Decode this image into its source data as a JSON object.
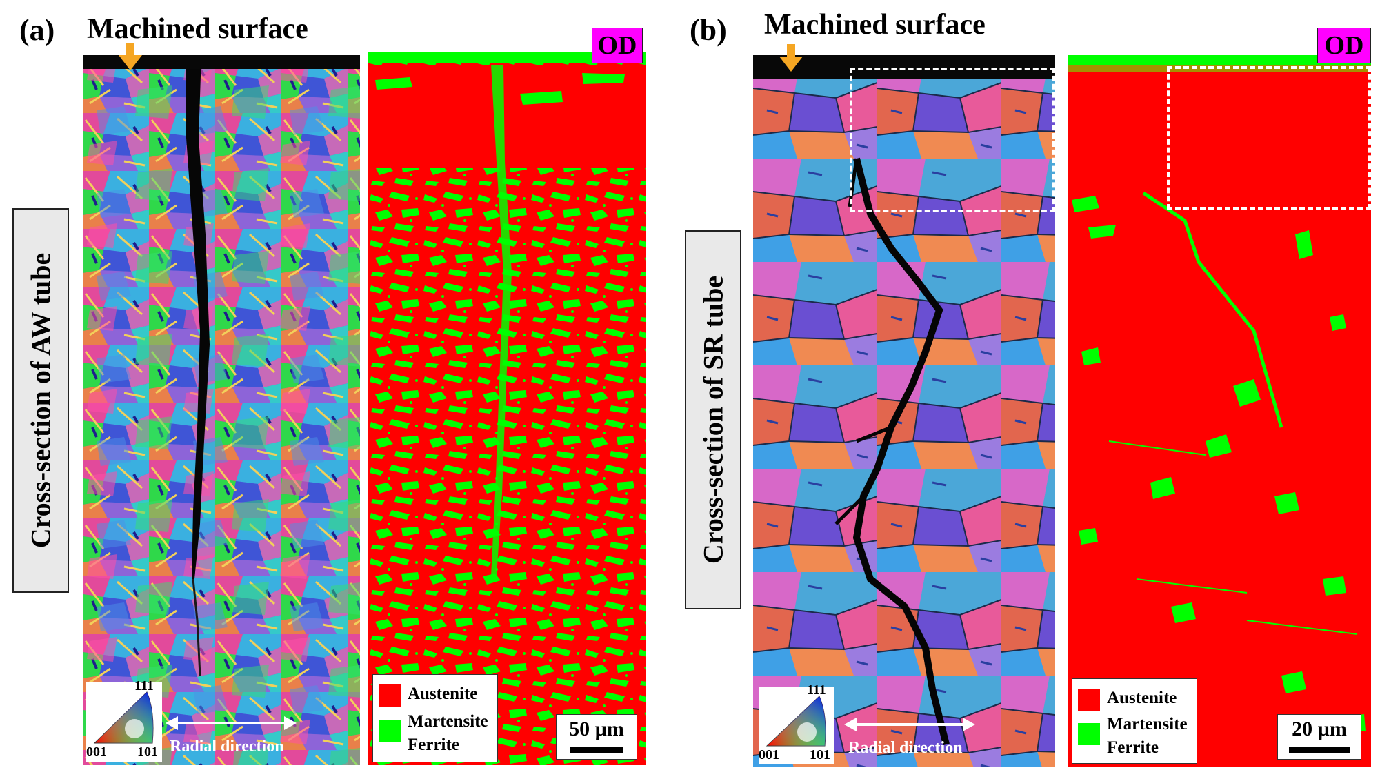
{
  "colors": {
    "austenite": "#ff0000",
    "martensite_ferrite": "#00ff00",
    "od_badge": "#ff00ff",
    "arrow": "#f5a623"
  },
  "panel_a": {
    "letter": "(a)",
    "title": "Machined surface",
    "side_label": "Cross-section of AW tube",
    "od_label": "OD",
    "ipf_labels": [
      "111",
      "001",
      "101"
    ],
    "radial_label": "Radial direction",
    "legend": [
      "Austenite",
      "Martensite",
      "Ferrite"
    ],
    "scale_label": "50 µm"
  },
  "panel_b": {
    "letter": "(b)",
    "title": "Machined surface",
    "side_label": "Cross-section of SR tube",
    "od_label": "OD",
    "ipf_labels": [
      "111",
      "001",
      "101"
    ],
    "radial_label": "Radial direction",
    "legend": [
      "Austenite",
      "Martensite",
      "Ferrite"
    ],
    "scale_label": "20 µm"
  }
}
